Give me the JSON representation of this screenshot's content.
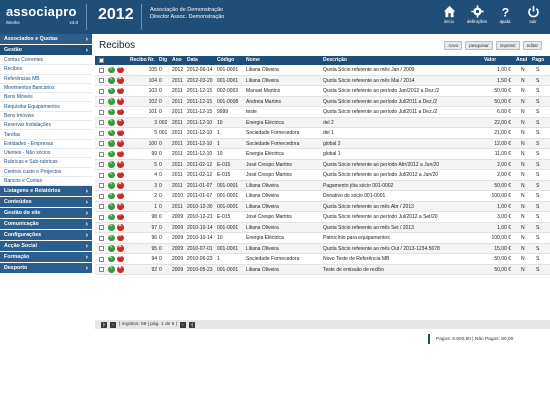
{
  "header": {
    "logo": "associapro",
    "brand_sub": "iWorks",
    "version": "v4.0",
    "year": "2012",
    "assoc_line1": "Associação de Demonstração",
    "assoc_line2": "Director Assoc. Demonstração",
    "icons": [
      {
        "label": "início",
        "icon": "home-icon"
      },
      {
        "label": "definições",
        "icon": "gear-icon"
      },
      {
        "label": "ajuda",
        "icon": "help-icon"
      },
      {
        "label": "sair",
        "icon": "power-icon"
      }
    ]
  },
  "sidebar": {
    "sections": [
      {
        "label": "Associados e Quotas"
      },
      {
        "label": "Gestão"
      },
      {
        "label": "Listagens e Relatórios"
      },
      {
        "label": "Conteúdos"
      },
      {
        "label": "Gestão do site"
      },
      {
        "label": "Comunicação"
      },
      {
        "label": "Configurações"
      },
      {
        "label": "Acção Social"
      },
      {
        "label": "Formação"
      },
      {
        "label": "Desporto"
      }
    ],
    "gestao_items": [
      "Contas Correntes",
      "Recibos",
      "Referências MB",
      "Movimentos Bancários",
      "Bens Móveis",
      "Requisitar Equipamentos",
      "Bens Imóveis",
      "Reservar Instalações",
      "Tarefas",
      "Entidades - Empresas",
      "Utentes - Não sócios",
      "Rubricas e Sub-rubricas",
      "Centros custo e Projectos",
      "Bancos e Contas"
    ]
  },
  "main": {
    "title": "Recibos",
    "buttons": [
      "novo",
      "pesquisar",
      "imprimir",
      "editar"
    ],
    "columns": [
      "Recibo Nr.",
      "Dig",
      "Ano",
      "Data",
      "Código",
      "Nome",
      "Descrição",
      "Valor",
      "Anul",
      "Pago"
    ],
    "rows": [
      [
        "105",
        "0",
        "2012",
        "2012-06-14",
        "001-0001",
        "Liliana Oliveira",
        "Quota Sócio referente ao mês Jan / 2009",
        "1,00 €",
        "N",
        "S"
      ],
      [
        "104",
        "0",
        "2011",
        "2012-03-20",
        "001-0001",
        "Liliana Oliveira",
        "Quota Sócio referente ao mês Mai / 2014",
        "1,50 €",
        "N",
        "S"
      ],
      [
        "103",
        "0",
        "2011",
        "2011-12-15",
        "002-0003",
        "Manuel Martins",
        "Quota Sócio referente ao período Jan/2012 a Dez./2",
        "50,00 €",
        "N",
        "S"
      ],
      [
        "102",
        "0",
        "2011",
        "2011-12-15",
        "001-0008",
        "Andreia Martins",
        "Quota Sócio referente ao período Jul/2011 a Dez./2",
        "50,00 €",
        "N",
        "S"
      ],
      [
        "101",
        "0",
        "2011",
        "2011-12-15",
        "9999",
        "teste",
        "Quota Sócio referente ao período Jul/2011 a Dez./2",
        "6,00 €",
        "N",
        "S"
      ],
      [
        "3",
        "002",
        "2011",
        "2011-12-10",
        "10",
        "Energia Eléctrica",
        "del 2",
        "22,00 €",
        "N",
        "S"
      ],
      [
        "5",
        "001",
        "2011",
        "2011-12-10",
        "1",
        "Sociedade Fornecedora",
        "del 1",
        "21,00 €",
        "N",
        "S"
      ],
      [
        "100",
        "0",
        "2011",
        "2011-12-10",
        "1",
        "Sociedade Fornecedora",
        "global 2",
        "12,00 €",
        "N",
        "S"
      ],
      [
        "99",
        "0",
        "2011",
        "2011-12-10",
        "10",
        "Energia Eléctrica",
        "global 1",
        "11,00 €",
        "N",
        "S"
      ],
      [
        "5",
        "0",
        "2011",
        "2011-02-12",
        "E-015",
        "José Crespo Martins",
        "Quota Sócio referente ao período Abr/2012 a Jun/20",
        "2,00 €",
        "N",
        "S"
      ],
      [
        "4",
        "0",
        "2011",
        "2011-02-12",
        "E-015",
        "José Crespo Martins",
        "Quota Sócio referente ao período Jul/2012 a Jun/20",
        "2,00 €",
        "N",
        "S"
      ],
      [
        "3",
        "0",
        "2011",
        "2011-01-07",
        "001-0001",
        "Liliana Oliveira",
        "Pagamento jóia sócio 001-0002",
        "50,00 €",
        "N",
        "S"
      ],
      [
        "2",
        "0",
        "2010",
        "2011-01-07",
        "001-0001",
        "Liliana Oliveira",
        "Donativo do sócio 001-0001",
        "100,00 €",
        "N",
        "S"
      ],
      [
        "1",
        "0",
        "2011",
        "2010-12-30",
        "001-0001",
        "Liliana Oliveira",
        "Quota Sócio referente ao mês Abr / 2013",
        "1,00 €",
        "N",
        "S"
      ],
      [
        "98",
        "0",
        "2009",
        "2010-12-21",
        "E-015",
        "José Crespo Martins",
        "Quota Sócio referente ao período Jul/2012 a Set/20",
        "3,00 €",
        "N",
        "S"
      ],
      [
        "97",
        "0",
        "2009",
        "2010-10-14",
        "001-0001",
        "Liliana Oliveira",
        "Quota Sócio referente ao mês Set / 2013",
        "1,00 €",
        "N",
        "S"
      ],
      [
        "96",
        "0",
        "2009",
        "2010-10-14",
        "10",
        "Energia Eléctrica",
        "Patrocínio para equipamentos",
        "100,00 €",
        "N",
        "S"
      ],
      [
        "95",
        "0",
        "2009",
        "2010-07-01",
        "001-0001",
        "Liliana Oliveira",
        "Quota Sócio referente ao mês Out / 2013-1234.5678",
        "15,00 €",
        "N",
        "S"
      ],
      [
        "94",
        "0",
        "2009",
        "2010-06-23",
        "1",
        "Sociedade Fornecedora",
        "Novo Teste de Referência MB",
        "50,00 €",
        "N",
        "S"
      ],
      [
        "92",
        "0",
        "2009",
        "2010-05-23",
        "001-0001",
        "Liliana Oliveira",
        "Teste de emissão de recibo",
        "50,00 €",
        "N",
        "S"
      ]
    ],
    "pager_text": "| registos: 89 | pág. 1 de 5 |",
    "totals": "Pagos: 9.600,50  |  Não Pagos: 80,00"
  }
}
